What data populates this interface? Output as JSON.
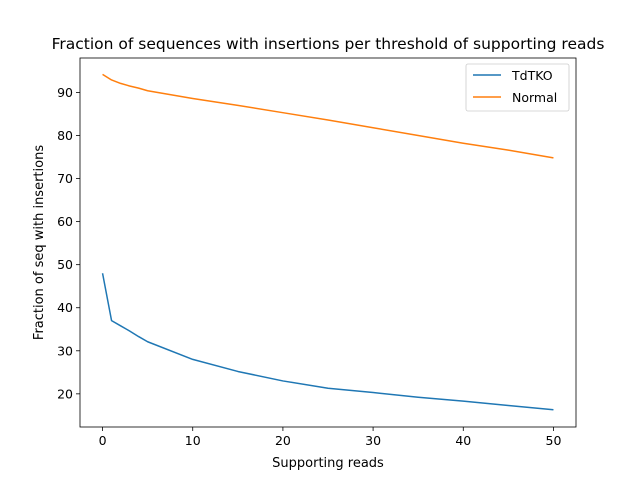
{
  "chart_data": {
    "type": "line",
    "title": "Fraction of sequences with insertions per threshold of supporting reads",
    "xlabel": "Supporting reads",
    "ylabel": "Fraction of seq with insertions",
    "xlim": [
      -2.5,
      52.5
    ],
    "ylim": [
      12.3,
      98.0
    ],
    "xticks": [
      0,
      10,
      20,
      30,
      40,
      50
    ],
    "yticks": [
      20,
      30,
      40,
      50,
      60,
      70,
      80,
      90
    ],
    "grid": false,
    "legend": "top-right",
    "series": [
      {
        "name": "TdTKO",
        "color": "#1f77b4",
        "x": [
          0,
          1,
          2,
          3,
          4,
          5,
          10,
          15,
          20,
          25,
          30,
          35,
          40,
          45,
          50
        ],
        "y": [
          48.0,
          37.0,
          35.8,
          34.6,
          33.3,
          32.1,
          28.0,
          25.2,
          23.0,
          21.3,
          20.3,
          19.2,
          18.3,
          17.3,
          16.3
        ]
      },
      {
        "name": "Normal",
        "color": "#ff7f0e",
        "x": [
          0,
          1,
          2,
          3,
          4,
          5,
          10,
          15,
          20,
          25,
          30,
          35,
          40,
          45,
          50
        ],
        "y": [
          94.2,
          92.9,
          92.1,
          91.5,
          91.0,
          90.4,
          88.6,
          87.0,
          85.3,
          83.6,
          81.8,
          80.0,
          78.2,
          76.6,
          74.8
        ]
      }
    ]
  }
}
